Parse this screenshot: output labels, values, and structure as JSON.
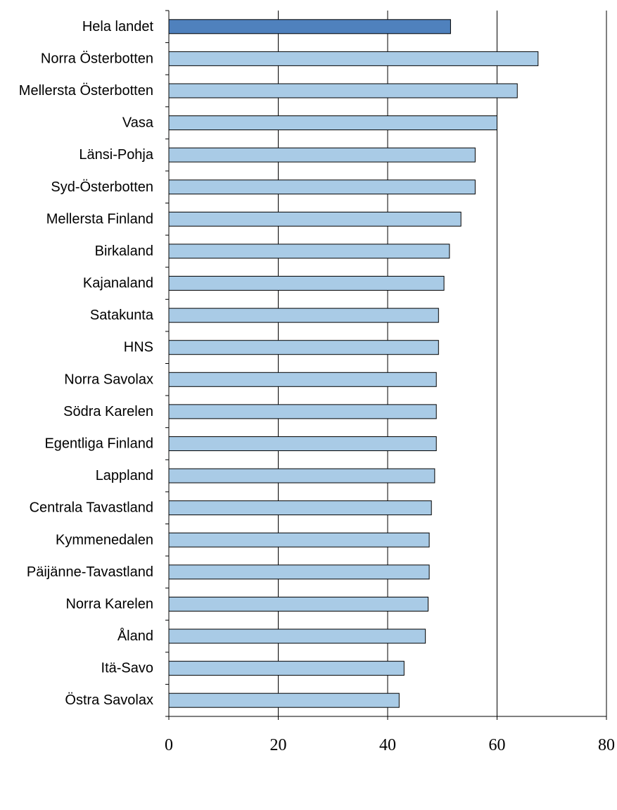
{
  "chart_data": {
    "type": "bar",
    "orientation": "horizontal",
    "title": "",
    "xlabel": "",
    "ylabel": "",
    "xlim": [
      0,
      80
    ],
    "x_ticks": [
      "0",
      "20",
      "40",
      "60",
      "80"
    ],
    "grid": "vertical gridlines at 20, 40, 60, 80",
    "legend": "none",
    "colors": {
      "highlight_fill": "#4F81BD",
      "bar_fill": "#A9CBE6",
      "bar_stroke": "#000000",
      "grid": "#000000"
    },
    "categories": [
      "Hela landet",
      "Norra Österbotten",
      "Mellersta Österbotten",
      "Vasa",
      "Länsi-Pohja",
      "Syd-Österbotten",
      "Mellersta Finland",
      "Birkaland",
      "Kajanaland",
      "Satakunta",
      "HNS",
      "Norra Savolax",
      "Södra Karelen",
      "Egentliga Finland",
      "Lappland",
      "Centrala Tavastland",
      "Kymmenedalen",
      "Päijänne-Tavastland",
      "Norra Karelen",
      "Åland",
      "Itä-Savo",
      "Östra Savolax"
    ],
    "values": [
      51.5,
      67.5,
      63.7,
      60.0,
      56.0,
      56.0,
      53.4,
      51.3,
      50.3,
      49.3,
      49.3,
      48.9,
      48.9,
      48.9,
      48.6,
      48.0,
      47.6,
      47.6,
      47.4,
      46.9,
      43.0,
      42.1
    ],
    "highlight_index": 0
  }
}
